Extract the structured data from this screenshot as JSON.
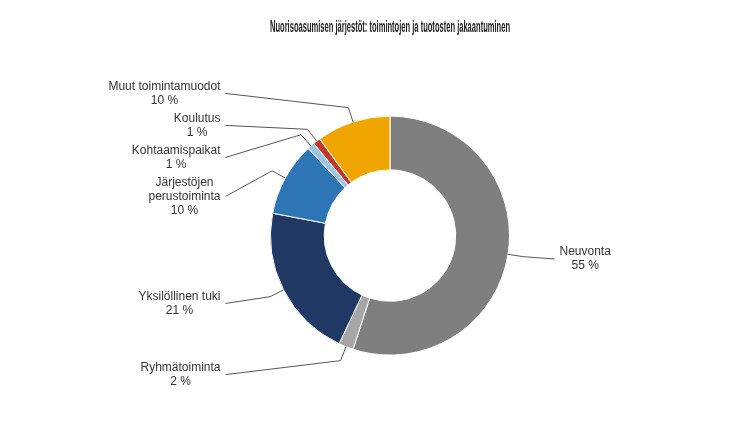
{
  "chart_data": {
    "type": "doughnut",
    "title": "Nuorisoasumisen järjestöt: toimintojen ja tuotosten jakaantuminen",
    "categories": [
      "Neuvonta\n55 %",
      "Ryhmätoiminta\n2 %",
      "Yksilöllinen tuki\n21 %",
      "Järjestöjen\nperustoiminta\n10 %",
      "Kohtaamispaikat\n1 %",
      "Koulutus\n1 %",
      "Muut toimintamuodot\n10 %"
    ],
    "values": [
      55,
      2,
      21,
      10,
      1,
      1,
      10
    ],
    "colors": [
      "#7f7f7f",
      "#a6a6a6",
      "#1f3864",
      "#2e75b6",
      "#9dc3e6",
      "#c0392b",
      "#f0a500"
    ]
  }
}
